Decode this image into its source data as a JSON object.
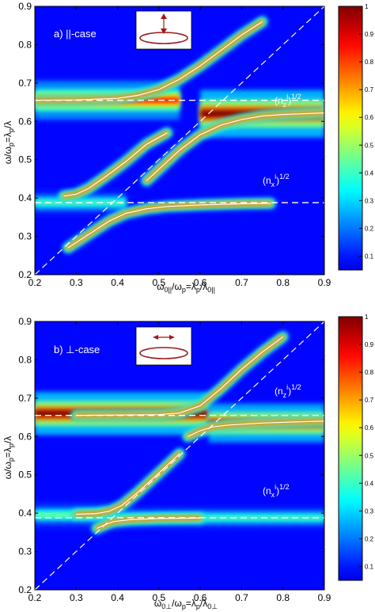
{
  "colors": {
    "background_dark_blue": "#0b1a8c",
    "ridge_high": "#b00000",
    "curve_line": "#ffffff",
    "dashed_line": "#ffffff",
    "inset_background": "#ffffff",
    "inset_ring": "#9a1b1b"
  },
  "chart_data": [
    {
      "type": "heatmap",
      "panel_label": "a) ||-case",
      "xlabel": "ω0||/ωp=λp/λ0||",
      "ylabel": "ω/ωp=λp/λ",
      "xlim": [
        0.2,
        0.9
      ],
      "ylim": [
        0.2,
        0.9
      ],
      "xticks": [
        "0.2",
        "0.3",
        "0.4",
        "0.5",
        "0.6",
        "0.7",
        "0.8",
        "0.9"
      ],
      "yticks": [
        "0.2",
        "0.3",
        "0.4",
        "0.5",
        "0.6",
        "0.7",
        "0.8",
        "0.9"
      ],
      "colorbar": {
        "range": [
          0,
          1
        ],
        "ticks": [
          "0.1",
          "0.2",
          "0.3",
          "0.4",
          "0.5",
          "0.6",
          "0.7",
          "0.8",
          "0.9",
          "1"
        ]
      },
      "horizontal_dashed_levels": [
        0.655,
        0.388
      ],
      "diagonal_dashed": [
        [
          0.2,
          0.2
        ],
        [
          0.9,
          0.9
        ]
      ],
      "annotations": [
        {
          "text": "(nzi)1/2",
          "x": 0.75,
          "y": 0.675
        },
        {
          "text": "(nxi)1/2",
          "x": 0.72,
          "y": 0.405
        }
      ],
      "inset_arrow": "vertical",
      "ridges": [
        {
          "name": "upper",
          "points": [
            [
              0.2,
              0.655
            ],
            [
              0.3,
              0.656
            ],
            [
              0.4,
              0.66
            ],
            [
              0.45,
              0.668
            ],
            [
              0.5,
              0.683
            ],
            [
              0.55,
              0.71
            ],
            [
              0.6,
              0.745
            ],
            [
              0.65,
              0.785
            ],
            [
              0.7,
              0.825
            ],
            [
              0.75,
              0.86
            ]
          ]
        },
        {
          "name": "middle",
          "points": [
            [
              0.27,
              0.405
            ],
            [
              0.3,
              0.41
            ],
            [
              0.33,
              0.425
            ],
            [
              0.37,
              0.455
            ],
            [
              0.42,
              0.495
            ],
            [
              0.47,
              0.54
            ],
            [
              0.52,
              0.57
            ]
          ]
        },
        {
          "name": "middle-lower",
          "points": [
            [
              0.47,
              0.445
            ],
            [
              0.5,
              0.475
            ],
            [
              0.55,
              0.525
            ],
            [
              0.6,
              0.565
            ],
            [
              0.65,
              0.59
            ],
            [
              0.7,
              0.605
            ],
            [
              0.75,
              0.614
            ],
            [
              0.8,
              0.618
            ],
            [
              0.85,
              0.62
            ],
            [
              0.9,
              0.622
            ]
          ]
        },
        {
          "name": "lower",
          "points": [
            [
              0.28,
              0.27
            ],
            [
              0.33,
              0.305
            ],
            [
              0.38,
              0.34
            ],
            [
              0.42,
              0.36
            ],
            [
              0.47,
              0.372
            ],
            [
              0.52,
              0.378
            ],
            [
              0.6,
              0.382
            ],
            [
              0.7,
              0.385
            ],
            [
              0.77,
              0.386
            ]
          ]
        }
      ],
      "bands": [
        {
          "y": 0.655,
          "x": [
            0.2,
            0.55
          ],
          "peak": 0.85,
          "width": 0.018
        },
        {
          "y": 0.388,
          "x": [
            0.2,
            0.42
          ],
          "peak": 0.45,
          "width": 0.014
        },
        {
          "y": 0.62,
          "x": [
            0.6,
            0.9
          ],
          "peak": 1.0,
          "width": 0.022
        }
      ]
    },
    {
      "type": "heatmap",
      "panel_label": "b) ⊥-case",
      "xlabel": "ω0⊥/ωp=λp/λ0⊥",
      "ylabel": "ω/ωp=λp/λ",
      "xlim": [
        0.2,
        0.9
      ],
      "ylim": [
        0.2,
        0.9
      ],
      "xticks": [
        "0.2",
        "0.3",
        "0.4",
        "0.5",
        "0.6",
        "0.7",
        "0.8",
        "0.9"
      ],
      "yticks": [
        "0.2",
        "0.3",
        "0.4",
        "0.5",
        "0.6",
        "0.7",
        "0.8",
        "0.9"
      ],
      "colorbar": {
        "range": [
          0,
          1
        ],
        "ticks": [
          "0.1",
          "0.2",
          "0.3",
          "0.4",
          "0.5",
          "0.6",
          "0.7",
          "0.8",
          "0.9",
          "1"
        ]
      },
      "horizontal_dashed_levels": [
        0.655,
        0.388
      ],
      "diagonal_dashed": [
        [
          0.2,
          0.2
        ],
        [
          0.9,
          0.9
        ]
      ],
      "annotations": [
        {
          "text": "(nzi)1/2",
          "x": 0.75,
          "y": 0.675
        },
        {
          "text": "(nxi)1/2",
          "x": 0.72,
          "y": 0.405
        }
      ],
      "inset_arrow": "horizontal",
      "ridges": [
        {
          "name": "upper",
          "points": [
            [
              0.3,
              0.655
            ],
            [
              0.4,
              0.656
            ],
            [
              0.5,
              0.657
            ],
            [
              0.55,
              0.661
            ],
            [
              0.6,
              0.68
            ],
            [
              0.65,
              0.725
            ],
            [
              0.7,
              0.775
            ],
            [
              0.75,
              0.82
            ],
            [
              0.8,
              0.86
            ]
          ]
        },
        {
          "name": "middle-upper",
          "points": [
            [
              0.57,
              0.6
            ],
            [
              0.6,
              0.615
            ],
            [
              0.63,
              0.625
            ],
            [
              0.67,
              0.63
            ],
            [
              0.75,
              0.635
            ],
            [
              0.83,
              0.638
            ],
            [
              0.9,
              0.64
            ]
          ]
        },
        {
          "name": "middle",
          "points": [
            [
              0.3,
              0.397
            ],
            [
              0.35,
              0.399
            ],
            [
              0.38,
              0.405
            ],
            [
              0.41,
              0.42
            ],
            [
              0.45,
              0.455
            ],
            [
              0.5,
              0.505
            ],
            [
              0.55,
              0.555
            ]
          ]
        },
        {
          "name": "lower",
          "points": [
            [
              0.35,
              0.36
            ],
            [
              0.37,
              0.37
            ],
            [
              0.39,
              0.378
            ],
            [
              0.43,
              0.383
            ],
            [
              0.5,
              0.386
            ],
            [
              0.6,
              0.387
            ]
          ]
        }
      ],
      "bands": [
        {
          "y": 0.66,
          "x": [
            0.2,
            0.62
          ],
          "peak": 1.0,
          "width": 0.02
        },
        {
          "y": 0.635,
          "x": [
            0.62,
            0.9
          ],
          "peak": 0.95,
          "width": 0.018
        },
        {
          "y": 0.395,
          "x": [
            0.2,
            0.38
          ],
          "peak": 0.5,
          "width": 0.013
        },
        {
          "y": 0.388,
          "x": [
            0.38,
            0.9
          ],
          "peak": 0.45,
          "width": 0.013
        }
      ]
    }
  ]
}
